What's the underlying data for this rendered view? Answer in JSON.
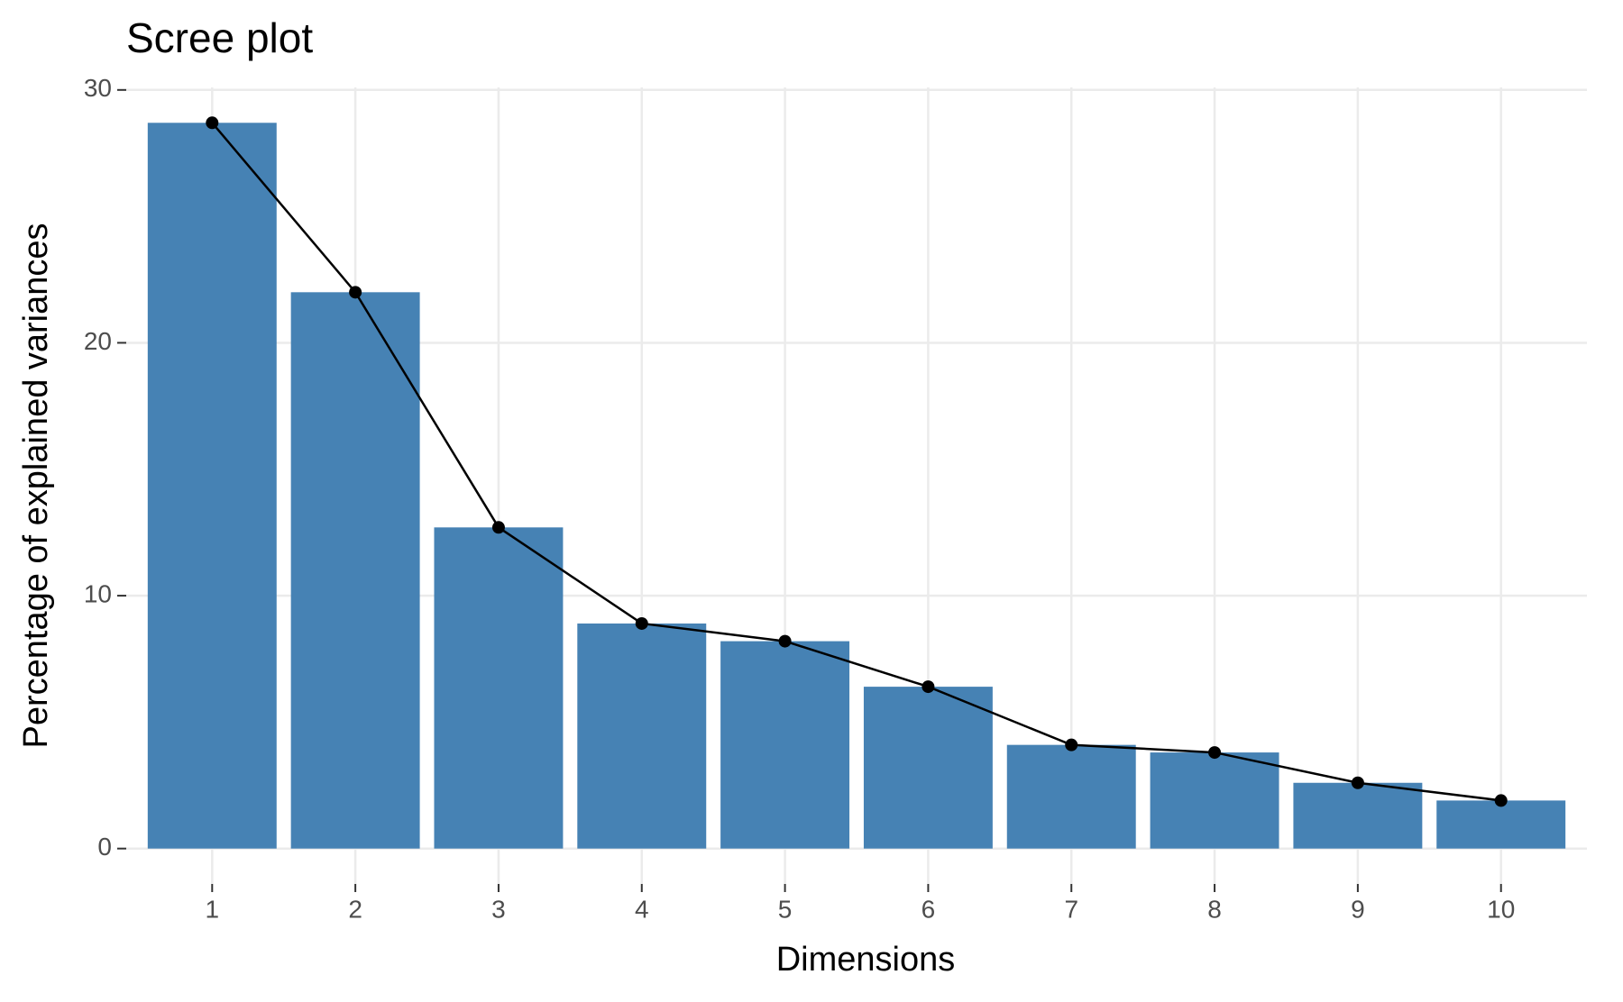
{
  "chart_data": {
    "type": "bar",
    "title": "Scree plot",
    "x_label": "Dimensions",
    "y_label": "Percentage of explained variances",
    "categories": [
      "1",
      "2",
      "3",
      "4",
      "5",
      "6",
      "7",
      "8",
      "9",
      "10"
    ],
    "values": [
      28.7,
      22.0,
      12.7,
      8.9,
      8.2,
      6.4,
      4.1,
      3.8,
      2.6,
      1.9
    ],
    "color": "#4682b4",
    "line_color": "#000000",
    "ylim": [
      -1.4,
      30.1
    ],
    "yticks": [
      0,
      10,
      20,
      30
    ],
    "grid": true
  }
}
